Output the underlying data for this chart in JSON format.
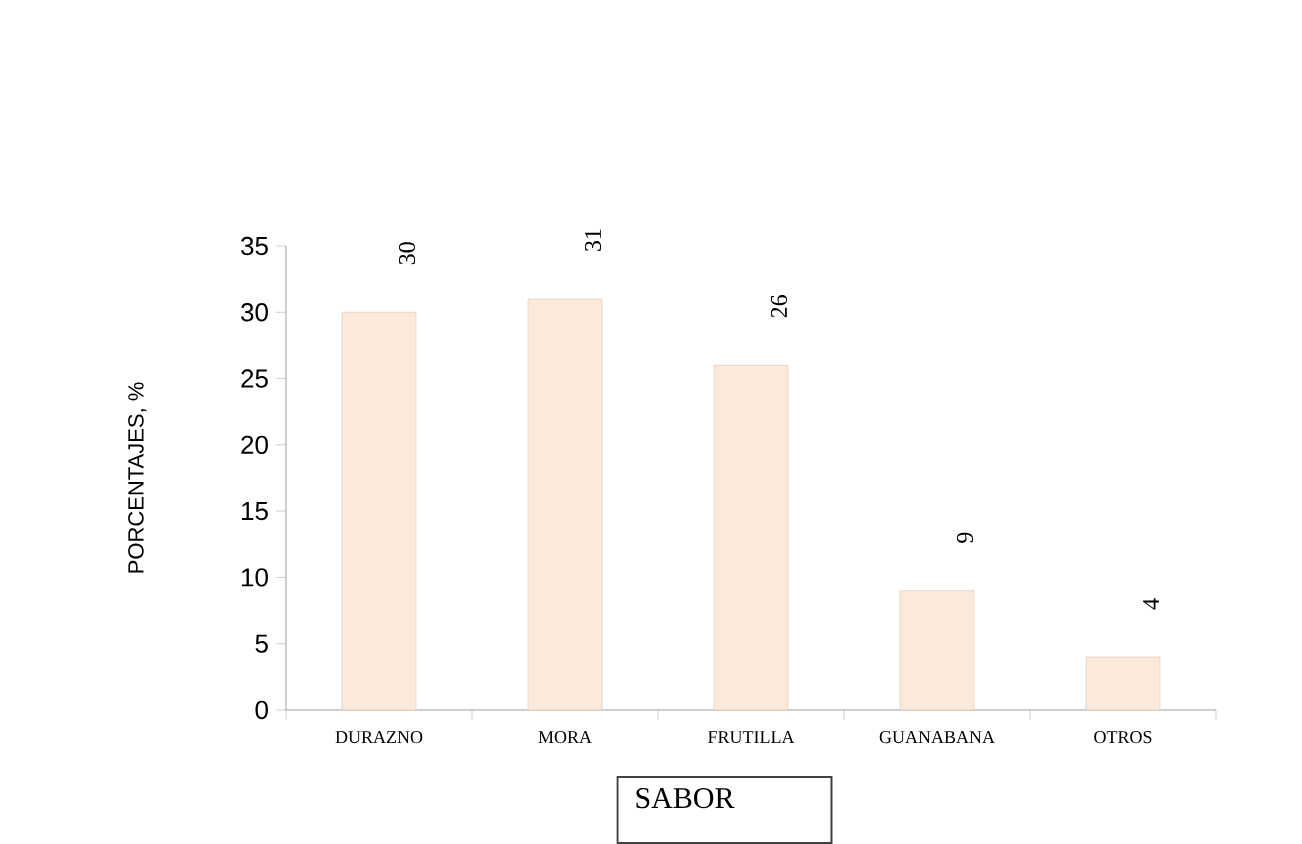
{
  "chart_data": {
    "type": "bar",
    "xlabel": "SABOR",
    "ylabel": "PORCENTAJES, %",
    "categories": [
      "DURAZNO",
      "MORA",
      "FRUTILLA",
      "GUANABANA",
      "OTROS"
    ],
    "values": [
      30,
      31,
      26,
      9,
      4
    ],
    "color": "#fde9d9",
    "ylim": [
      0,
      35
    ],
    "yticks": [
      0,
      5,
      10,
      15,
      20,
      25,
      30,
      35
    ],
    "data_labels": true
  }
}
